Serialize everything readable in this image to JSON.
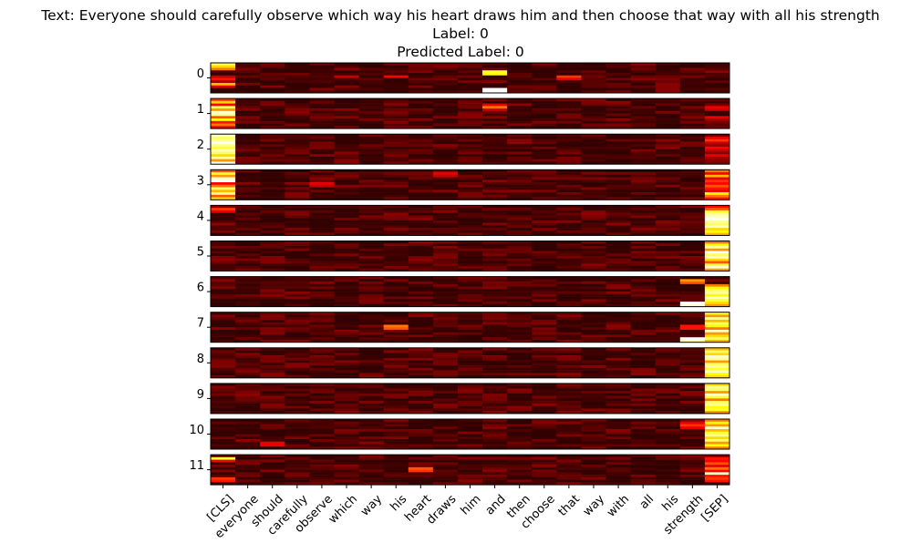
{
  "chart_data": {
    "type": "heatmap",
    "title_lines": [
      "Text: Everyone should carefully observe which way his heart draws him and then choose that way with all his strength",
      "Label: 0",
      "Predicted Label: 0"
    ],
    "tokens": [
      "[CLS]",
      "everyone",
      "should",
      "carefully",
      "observe",
      "which",
      "way",
      "his",
      "heart",
      "draws",
      "him",
      "and",
      "then",
      "choose",
      "that",
      "way",
      "with",
      "all",
      "his",
      "strength",
      "[SEP]"
    ],
    "layers": [
      "0",
      "1",
      "2",
      "3",
      "4",
      "5",
      "6",
      "7",
      "8",
      "9",
      "10",
      "11"
    ],
    "rows_per_layer": 12,
    "colormap": "hot",
    "value_range": [
      0,
      1
    ],
    "background": 0.03,
    "highlights": [
      {
        "layer": 0,
        "token": 0,
        "rows": [
          0,
          1,
          2
        ],
        "values": [
          0.85,
          0.7,
          0.55
        ]
      },
      {
        "layer": 0,
        "token": 0,
        "rows": [
          5,
          6,
          7,
          8,
          9
        ],
        "values": [
          0.25,
          0.4,
          0.2,
          0.65,
          0.3
        ]
      },
      {
        "layer": 0,
        "token": 11,
        "rows": [
          3,
          4
        ],
        "values": [
          0.8,
          0.75
        ]
      },
      {
        "layer": 0,
        "token": 11,
        "rows": [
          10,
          11
        ],
        "values": [
          1.0,
          1.0
        ]
      },
      {
        "layer": 0,
        "token": 7,
        "rows": [
          5
        ],
        "values": [
          0.35
        ]
      },
      {
        "layer": 0,
        "token": 14,
        "rows": [
          5,
          6
        ],
        "values": [
          0.45,
          0.3
        ]
      },
      {
        "layer": 0,
        "token": 5,
        "rows": [
          5
        ],
        "values": [
          0.25
        ]
      },
      {
        "layer": 1,
        "token": 0,
        "rows": [
          0,
          1,
          2,
          3,
          4,
          5,
          6,
          7,
          8,
          9,
          10,
          11
        ],
        "values": [
          0.45,
          0.7,
          0.35,
          0.85,
          0.6,
          0.95,
          0.9,
          0.5,
          0.75,
          0.4,
          0.55,
          0.3
        ]
      },
      {
        "layer": 1,
        "token": 11,
        "rows": [
          2,
          3,
          4
        ],
        "values": [
          0.3,
          0.55,
          0.25
        ]
      },
      {
        "layer": 1,
        "token": 20,
        "rows": [
          3,
          4,
          7,
          8
        ],
        "values": [
          0.3,
          0.25,
          0.3,
          0.2
        ]
      },
      {
        "layer": 2,
        "token": 0,
        "rows": [
          0,
          1,
          2,
          3,
          4,
          5,
          6,
          7,
          8,
          9,
          10,
          11
        ],
        "values": [
          0.95,
          0.85,
          0.9,
          1.0,
          0.88,
          0.8,
          0.93,
          0.85,
          0.7,
          0.9,
          0.6,
          1.0
        ]
      },
      {
        "layer": 2,
        "token": 20,
        "rows": [
          1,
          2,
          3,
          5,
          6,
          8,
          9
        ],
        "values": [
          0.3,
          0.45,
          0.25,
          0.35,
          0.25,
          0.3,
          0.2
        ]
      },
      {
        "layer": 3,
        "token": 0,
        "rows": [
          0,
          1,
          2,
          3,
          4,
          5,
          6,
          7,
          8,
          9,
          10,
          11
        ],
        "values": [
          0.5,
          0.8,
          0.6,
          0.95,
          1.0,
          0.35,
          0.55,
          0.85,
          0.65,
          0.9,
          0.5,
          0.7
        ]
      },
      {
        "layer": 3,
        "token": 20,
        "rows": [
          0,
          1,
          2,
          3,
          4,
          5,
          6,
          7,
          8,
          9,
          10,
          11
        ],
        "values": [
          0.55,
          0.35,
          0.65,
          0.3,
          0.45,
          0.35,
          0.5,
          0.4,
          0.3,
          0.75,
          0.55,
          0.4
        ]
      },
      {
        "layer": 3,
        "token": 9,
        "rows": [
          1,
          2
        ],
        "values": [
          0.3,
          0.25
        ]
      },
      {
        "layer": 3,
        "token": 4,
        "rows": [
          5,
          6
        ],
        "values": [
          0.3,
          0.25
        ]
      },
      {
        "layer": 4,
        "token": 20,
        "rows": [
          0,
          1,
          2,
          3,
          4,
          5,
          6,
          7,
          8,
          9,
          10,
          11
        ],
        "values": [
          0.35,
          0.5,
          0.8,
          0.9,
          0.95,
          1.0,
          0.9,
          0.85,
          0.95,
          0.7,
          0.75,
          0.65
        ]
      },
      {
        "layer": 4,
        "token": 0,
        "rows": [
          1,
          2
        ],
        "values": [
          0.45,
          0.3
        ]
      },
      {
        "layer": 5,
        "token": 20,
        "rows": [
          0,
          1,
          2,
          3,
          4,
          5,
          6,
          7,
          8,
          9,
          10,
          11
        ],
        "values": [
          0.55,
          0.75,
          0.9,
          0.6,
          1.0,
          0.85,
          0.95,
          0.7,
          0.5,
          0.8,
          0.95,
          0.6
        ]
      },
      {
        "layer": 6,
        "token": 20,
        "rows": [
          3,
          4,
          5,
          6,
          7,
          8,
          9,
          10,
          11
        ],
        "values": [
          0.55,
          0.75,
          0.85,
          0.9,
          0.75,
          0.95,
          0.8,
          0.7,
          0.6
        ]
      },
      {
        "layer": 6,
        "token": 19,
        "rows": [
          1,
          2
        ],
        "values": [
          0.6,
          0.5
        ]
      },
      {
        "layer": 6,
        "token": 19,
        "rows": [
          10,
          11
        ],
        "values": [
          1.0,
          0.95
        ]
      },
      {
        "layer": 7,
        "token": 20,
        "rows": [
          0,
          1,
          2,
          3,
          4,
          5,
          6,
          7,
          8,
          9,
          10,
          11
        ],
        "values": [
          0.8,
          0.6,
          0.9,
          0.65,
          0.85,
          0.75,
          0.55,
          0.95,
          0.6,
          0.7,
          0.85,
          0.65
        ]
      },
      {
        "layer": 7,
        "token": 7,
        "rows": [
          5,
          6
        ],
        "values": [
          0.55,
          0.5
        ]
      },
      {
        "layer": 7,
        "token": 19,
        "rows": [
          5,
          6
        ],
        "values": [
          0.4,
          0.4
        ]
      },
      {
        "layer": 7,
        "token": 19,
        "rows": [
          10,
          11
        ],
        "values": [
          1.0,
          0.9
        ]
      },
      {
        "layer": 8,
        "token": 20,
        "rows": [
          0,
          1,
          2,
          3,
          4,
          5,
          6,
          7,
          8,
          9,
          10,
          11
        ],
        "values": [
          0.65,
          0.85,
          0.7,
          0.95,
          0.9,
          0.6,
          0.85,
          0.9,
          0.8,
          0.95,
          0.75,
          0.7
        ]
      },
      {
        "layer": 9,
        "token": 20,
        "rows": [
          0,
          1,
          2,
          3,
          4,
          5,
          6,
          7,
          8,
          9,
          10,
          11
        ],
        "values": [
          0.7,
          0.9,
          0.85,
          0.6,
          0.95,
          0.8,
          0.55,
          0.85,
          0.9,
          0.75,
          0.8,
          0.6
        ]
      },
      {
        "layer": 10,
        "token": 20,
        "rows": [
          0,
          1,
          2,
          3,
          4,
          5,
          6,
          7,
          8,
          9,
          10,
          11
        ],
        "values": [
          0.55,
          0.75,
          0.6,
          0.95,
          0.65,
          0.8,
          0.9,
          0.7,
          0.85,
          0.6,
          0.75,
          0.55
        ]
      },
      {
        "layer": 10,
        "token": 19,
        "rows": [
          1,
          2,
          3
        ],
        "values": [
          0.3,
          0.45,
          0.3
        ]
      },
      {
        "layer": 10,
        "token": 2,
        "rows": [
          9,
          10
        ],
        "values": [
          0.3,
          0.3
        ]
      },
      {
        "layer": 11,
        "token": 0,
        "rows": [
          1,
          2
        ],
        "values": [
          0.8,
          0.3
        ]
      },
      {
        "layer": 11,
        "token": 0,
        "rows": [
          9,
          10
        ],
        "values": [
          0.45,
          0.4
        ]
      },
      {
        "layer": 11,
        "token": 8,
        "rows": [
          5,
          6
        ],
        "values": [
          0.5,
          0.45
        ]
      },
      {
        "layer": 11,
        "token": 20,
        "rows": [
          1,
          2,
          3,
          4,
          5,
          6,
          7,
          8,
          9,
          10
        ],
        "values": [
          0.4,
          0.35,
          0.5,
          0.3,
          0.55,
          0.35,
          0.95,
          0.4,
          0.45,
          0.4
        ]
      }
    ],
    "grid": false,
    "legend": "none"
  }
}
